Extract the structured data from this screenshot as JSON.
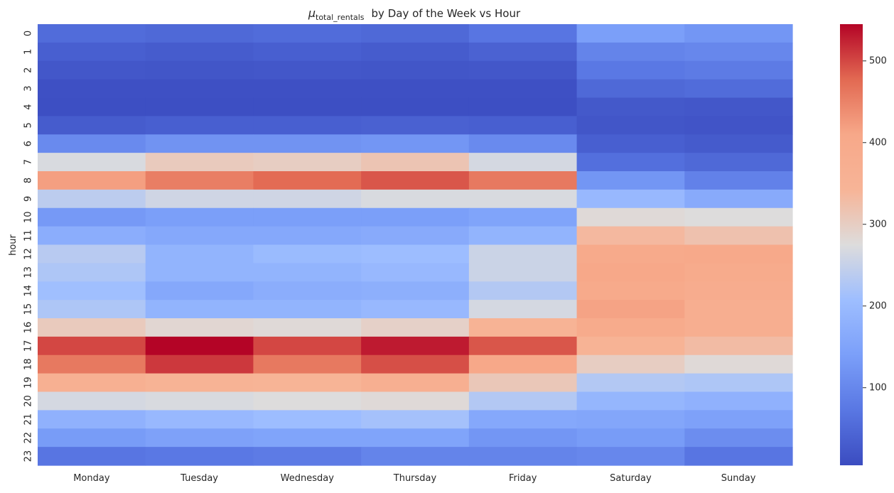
{
  "chart_data": {
    "type": "heatmap",
    "title_symbol": "μ",
    "title_subscript": "total_rentals",
    "title_rest": "by Day of the Week vs Hour",
    "xlabel": "",
    "ylabel": "hour",
    "colormap": "coolwarm",
    "color_range": [
      5,
      545
    ],
    "colorbar_ticks": [
      100,
      200,
      300,
      400,
      500
    ],
    "colormap_stops": [
      {
        "v": 0.0,
        "c": "#3b4cc0"
      },
      {
        "v": 0.125,
        "c": "#5977e3"
      },
      {
        "v": 0.25,
        "c": "#7b9ff9"
      },
      {
        "v": 0.375,
        "c": "#9ebeff"
      },
      {
        "v": 0.5,
        "c": "#dddcdc"
      },
      {
        "v": 0.625,
        "c": "#f7b497"
      },
      {
        "v": 0.75,
        "c": "#f7a889"
      },
      {
        "v": 0.875,
        "c": "#e26952"
      },
      {
        "v": 1.0,
        "c": "#b40426"
      }
    ],
    "columns": [
      "Monday",
      "Tuesday",
      "Wednesday",
      "Thursday",
      "Friday",
      "Saturday",
      "Sunday"
    ],
    "rows": [
      "0",
      "1",
      "2",
      "3",
      "4",
      "5",
      "6",
      "7",
      "8",
      "9",
      "10",
      "11",
      "12",
      "13",
      "14",
      "15",
      "16",
      "17",
      "18",
      "19",
      "20",
      "21",
      "22",
      "23"
    ],
    "values": [
      [
        55,
        50,
        55,
        50,
        70,
        140,
        125
      ],
      [
        35,
        30,
        35,
        30,
        40,
        95,
        100
      ],
      [
        22,
        20,
        22,
        20,
        22,
        75,
        80
      ],
      [
        12,
        12,
        12,
        12,
        12,
        50,
        55
      ],
      [
        10,
        10,
        10,
        10,
        10,
        25,
        22
      ],
      [
        30,
        35,
        35,
        38,
        35,
        20,
        18
      ],
      [
        105,
        120,
        120,
        125,
        105,
        35,
        28
      ],
      [
        270,
        305,
        300,
        315,
        265,
        60,
        50
      ],
      [
        420,
        455,
        475,
        490,
        460,
        125,
        90
      ],
      [
        240,
        260,
        260,
        270,
        270,
        195,
        165
      ],
      [
        130,
        140,
        140,
        140,
        150,
        280,
        275
      ],
      [
        170,
        160,
        160,
        165,
        185,
        335,
        320
      ],
      [
        235,
        185,
        200,
        205,
        255,
        400,
        405
      ],
      [
        225,
        185,
        185,
        195,
        255,
        410,
        395
      ],
      [
        210,
        160,
        170,
        175,
        230,
        400,
        385
      ],
      [
        225,
        185,
        185,
        195,
        265,
        415,
        375
      ],
      [
        305,
        285,
        280,
        295,
        350,
        395,
        375
      ],
      [
        500,
        545,
        500,
        530,
        490,
        350,
        330
      ],
      [
        460,
        510,
        460,
        495,
        410,
        300,
        280
      ],
      [
        365,
        350,
        345,
        370,
        310,
        230,
        225
      ],
      [
        265,
        270,
        275,
        280,
        230,
        190,
        180
      ],
      [
        180,
        195,
        205,
        215,
        160,
        155,
        145
      ],
      [
        135,
        145,
        150,
        150,
        125,
        135,
        110
      ],
      [
        70,
        75,
        80,
        95,
        95,
        100,
        70
      ]
    ]
  }
}
